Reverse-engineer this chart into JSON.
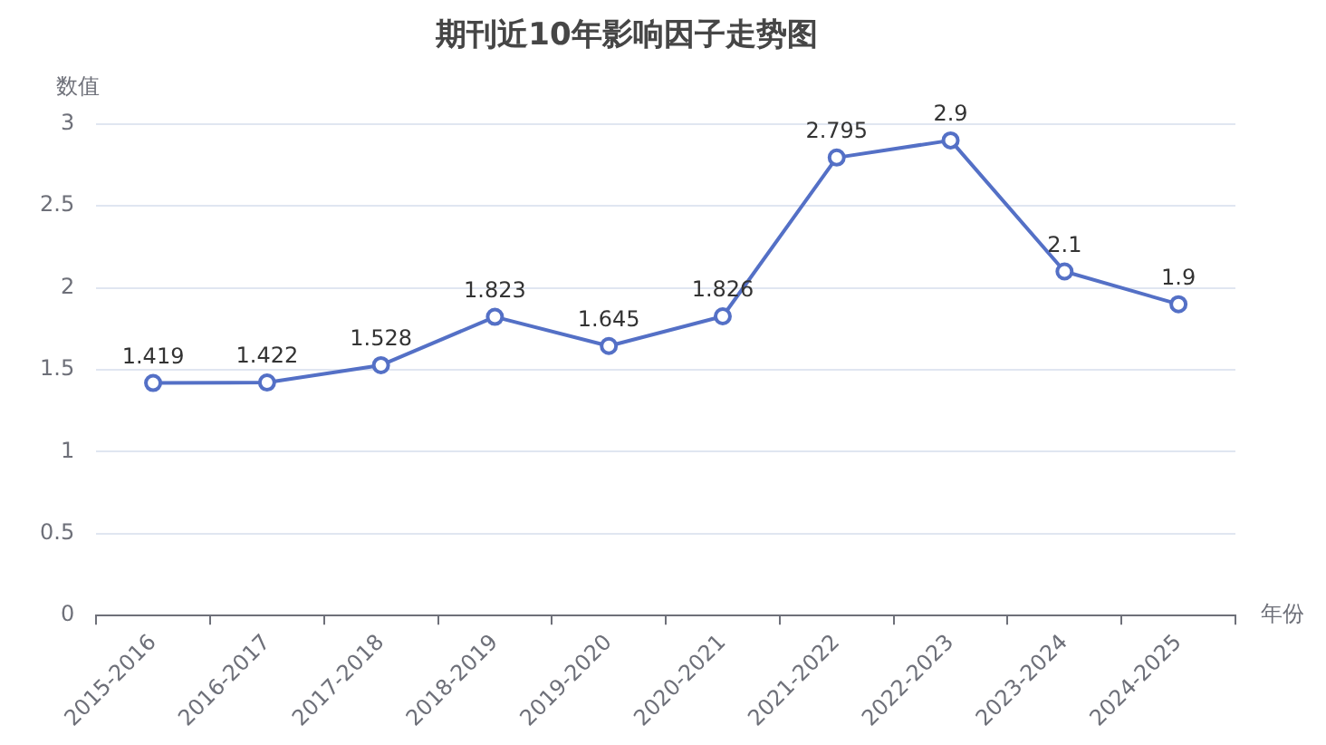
{
  "chart_data": {
    "type": "line",
    "title": "期刊近10年影响因子走势图",
    "xlabel": "年份",
    "ylabel": "数值",
    "categories": [
      "2015-2016",
      "2016-2017",
      "2017-2018",
      "2018-2019",
      "2019-2020",
      "2020-2021",
      "2021-2022",
      "2022-2023",
      "2023-2024",
      "2024-2025"
    ],
    "series": [
      {
        "color": "#5470c6",
        "values": [
          1.419,
          1.422,
          1.528,
          1.823,
          1.645,
          1.826,
          2.795,
          2.9,
          2.1,
          1.9
        ]
      }
    ],
    "ylim": [
      0,
      3
    ],
    "yticks": [
      0,
      0.5,
      1,
      1.5,
      2,
      2.5,
      3
    ],
    "grid": "y",
    "legend": false,
    "marker": "circle",
    "line_style": "solid",
    "data_labels": true
  }
}
